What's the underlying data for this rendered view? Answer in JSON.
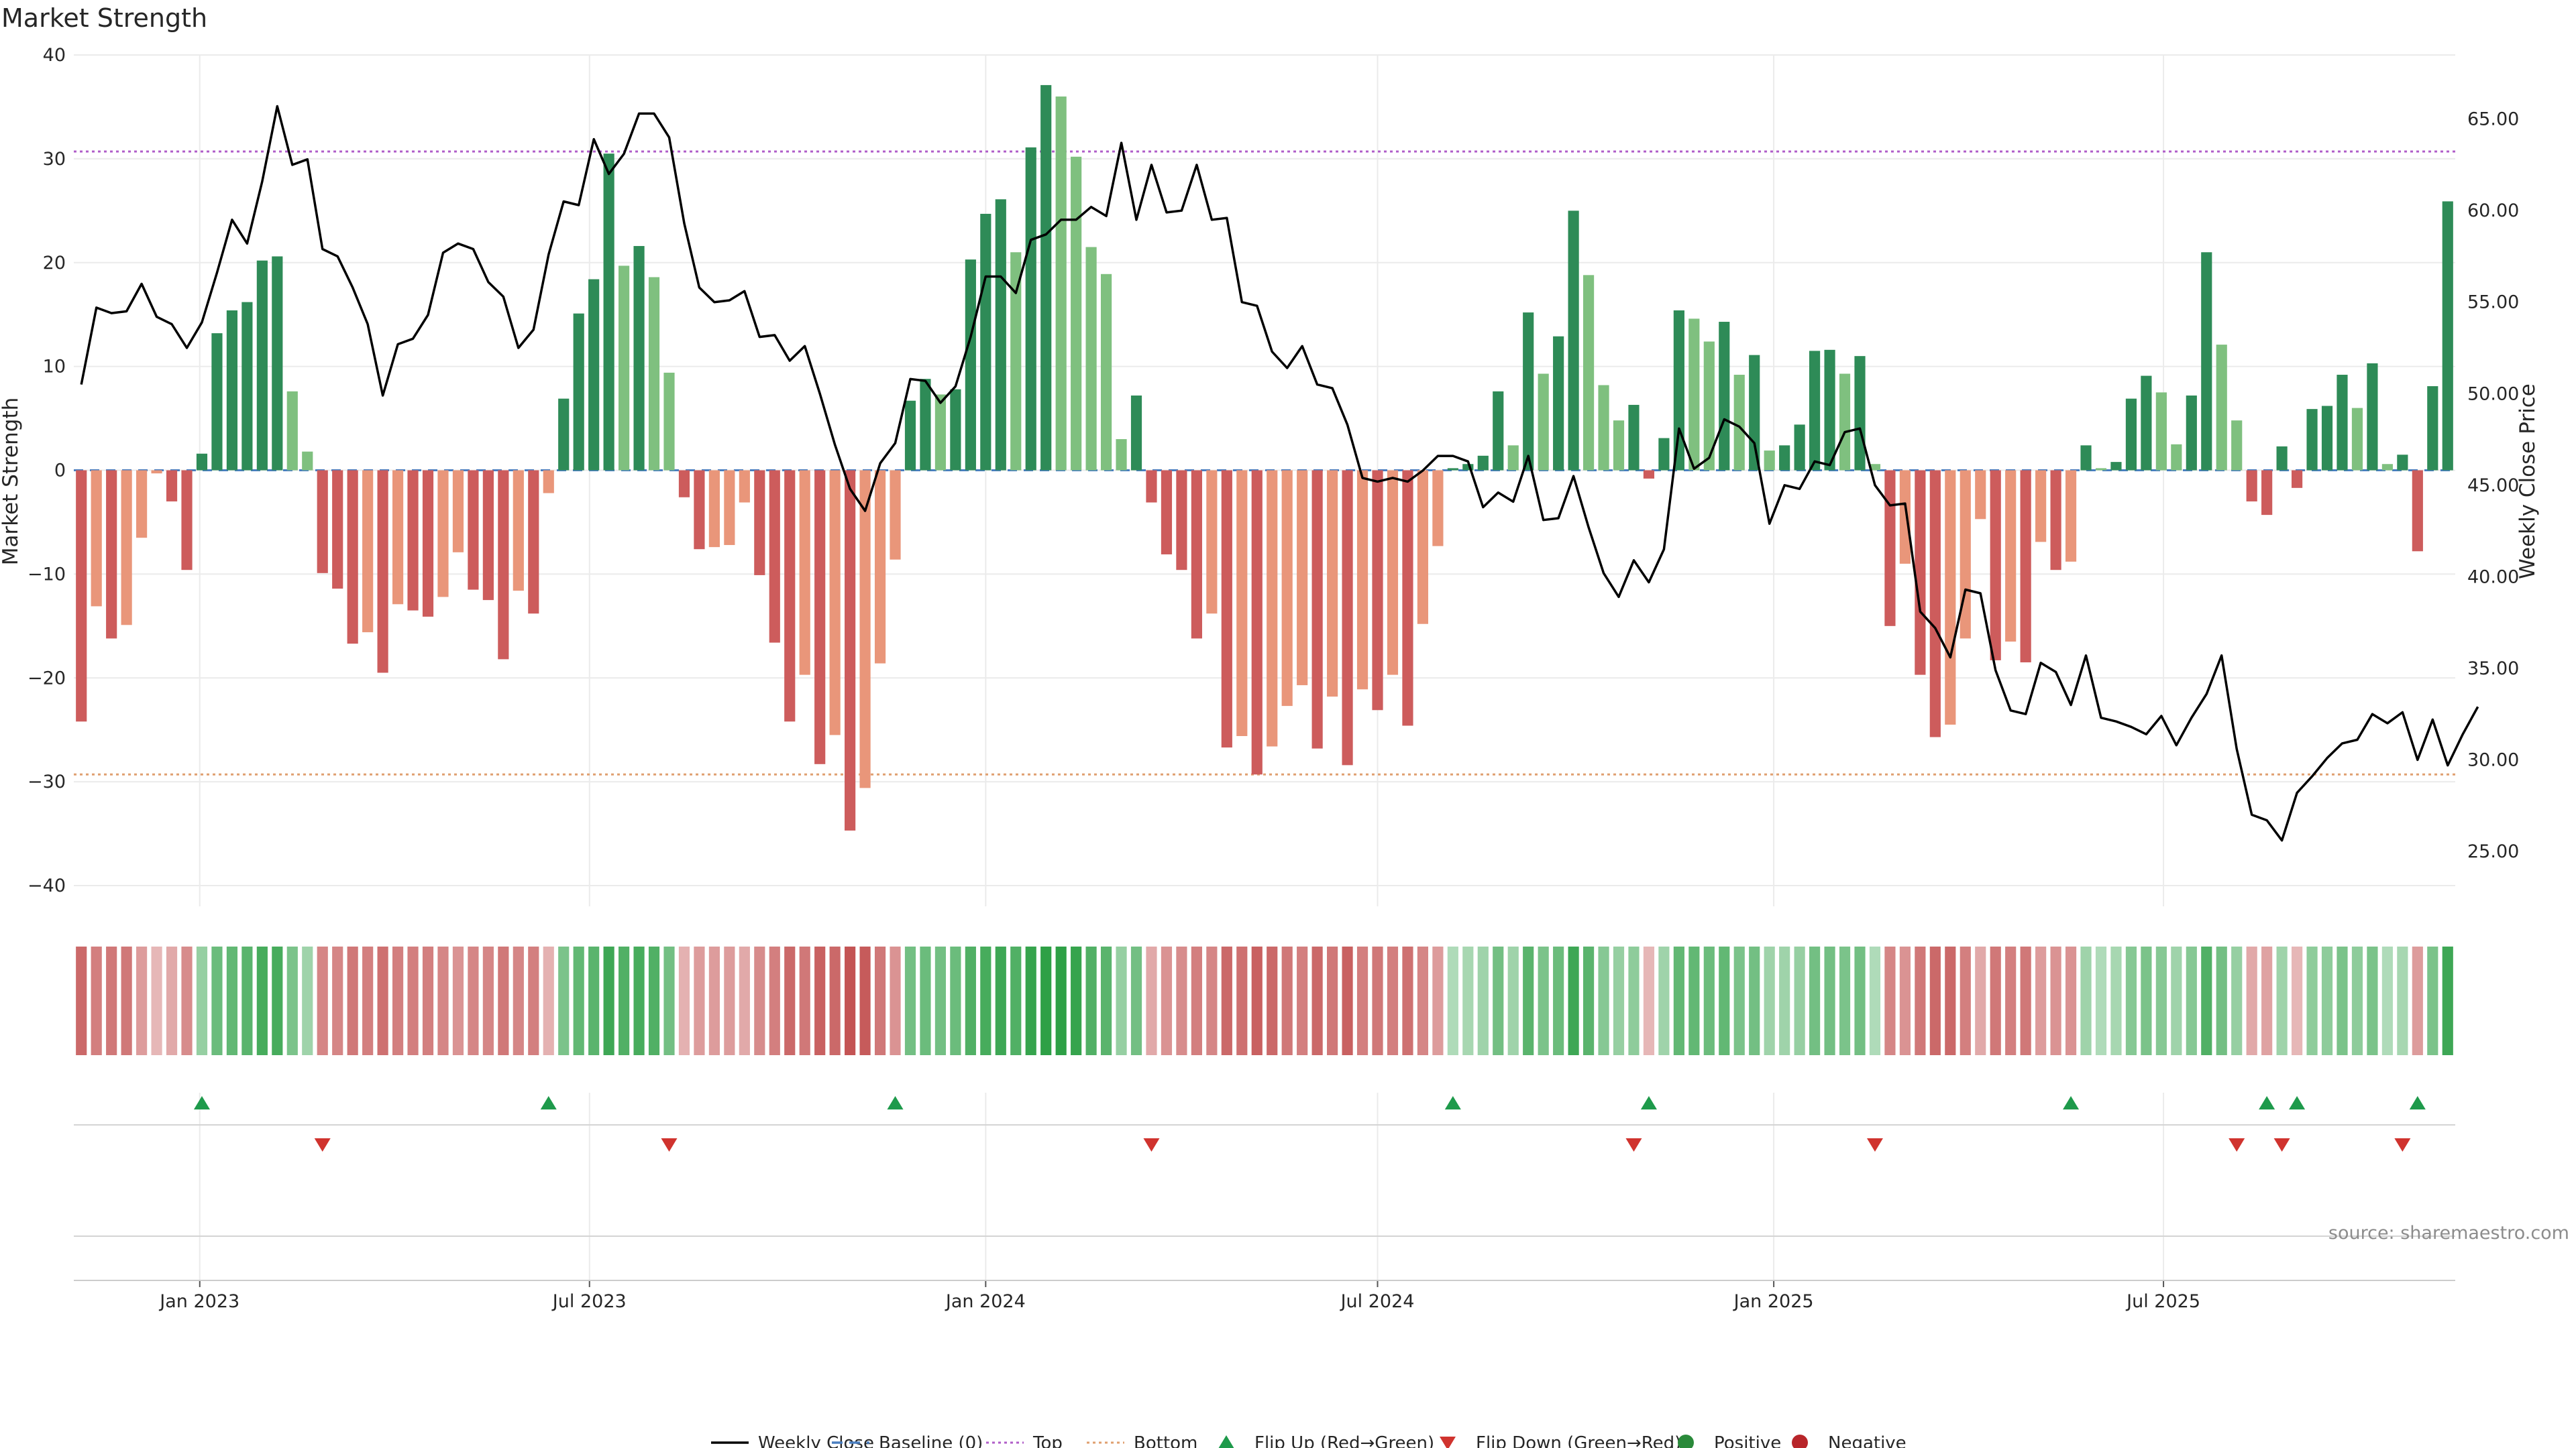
{
  "chart_data": {
    "type": "bar",
    "title": "Market Strength",
    "ylabel": "Market Strength",
    "y2label": "Weekly Close Price",
    "source": "source: sharemaestro.com",
    "ylim": [
      -42,
      40
    ],
    "y2lim": [
      22,
      68.5
    ],
    "yticks": [
      40,
      30,
      20,
      10,
      0,
      -10,
      -20,
      -30,
      -40
    ],
    "y2ticks": [
      65,
      60,
      55,
      50,
      45,
      40,
      35,
      30,
      25
    ],
    "top_line": 30.7,
    "bottom_line": -29.3,
    "start_date": "2022-11-07",
    "xticks": [
      {
        "label": "Jan 2023",
        "date": "2023-01-01"
      },
      {
        "label": "Jul 2023",
        "date": "2023-07-01"
      },
      {
        "label": "Jan 2024",
        "date": "2024-01-01"
      },
      {
        "label": "Jul 2024",
        "date": "2024-07-01"
      },
      {
        "label": "Jan 2025",
        "date": "2025-01-01"
      },
      {
        "label": "Jul 2025",
        "date": "2025-07-01"
      }
    ],
    "strength": [
      -24.2,
      -13.1,
      -16.2,
      -14.9,
      -6.5,
      -0.3,
      -3,
      -9.6,
      1.6,
      13.2,
      15.4,
      16.2,
      20.2,
      20.6,
      7.6,
      1.8,
      -9.9,
      -11.4,
      -16.7,
      -15.6,
      -19.5,
      -12.9,
      -13.5,
      -14.1,
      -12.2,
      -7.9,
      -11.5,
      -12.5,
      -18.2,
      -11.6,
      -13.8,
      -2.2,
      6.9,
      15.1,
      18.4,
      30.5,
      19.7,
      21.6,
      18.6,
      9.4,
      -2.6,
      -7.6,
      -7.4,
      -7.2,
      -3.1,
      -10.1,
      -16.6,
      -24.2,
      -19.7,
      -28.3,
      -25.5,
      -34.7,
      -30.6,
      -18.6,
      -8.6,
      6.7,
      8.8,
      7.3,
      7.8,
      20.3,
      24.7,
      26.1,
      21,
      31.1,
      37.1,
      36,
      30.2,
      21.5,
      18.9,
      3,
      7.2,
      -3.1,
      -8.1,
      -9.6,
      -16.2,
      -13.8,
      -26.7,
      -25.6,
      -29.3,
      -26.6,
      -22.7,
      -20.7,
      -26.8,
      -21.8,
      -28.4,
      -21.1,
      -23.1,
      -19.7,
      -24.6,
      -14.8,
      -7.3,
      0.2,
      0.6,
      1.4,
      7.6,
      2.4,
      15.2,
      9.3,
      12.9,
      25,
      18.8,
      8.2,
      4.8,
      6.3,
      -0.8,
      3.1,
      15.4,
      14.6,
      12.4,
      14.3,
      9.2,
      11.1,
      1.9,
      2.4,
      4.4,
      11.5,
      11.6,
      9.3,
      11,
      0.6,
      -15,
      -9,
      -19.7,
      -25.7,
      -24.5,
      -16.2,
      -4.7,
      -18.3,
      -16.5,
      -18.5,
      -6.9,
      -9.6,
      -8.8,
      2.4,
      0.2,
      0.8,
      6.9,
      9.1,
      7.5,
      2.5,
      7.2,
      21,
      12.1,
      4.8,
      -3,
      -4.3,
      2.3,
      -1.7,
      5.9,
      6.2,
      9.2,
      6,
      10.3,
      0.6,
      1.5,
      -7.8,
      8.1,
      25.9
    ],
    "price": [
      50.5,
      54.7,
      54.4,
      54.5,
      56,
      54.2,
      53.8,
      52.5,
      53.9,
      56.6,
      59.5,
      58.2,
      61.6,
      65.7,
      62.5,
      62.8,
      57.9,
      57.5,
      55.8,
      53.8,
      49.9,
      52.7,
      53,
      54.3,
      57.7,
      58.2,
      57.9,
      56.1,
      55.3,
      52.5,
      53.5,
      57.6,
      60.5,
      60.3,
      63.9,
      62,
      63.1,
      65.3,
      65.3,
      64,
      59.3,
      55.8,
      55,
      55.1,
      55.6,
      53.1,
      53.2,
      51.8,
      52.6,
      50,
      47.2,
      44.8,
      43.6,
      46.2,
      47.3,
      50.8,
      50.7,
      49.5,
      50.4,
      53.1,
      56.4,
      56.4,
      55.5,
      58.4,
      58.7,
      59.5,
      59.5,
      60.2,
      59.7,
      63.7,
      59.5,
      62.5,
      59.9,
      60,
      62.5,
      59.5,
      59.6,
      55,
      54.8,
      52.3,
      51.4,
      52.6,
      50.5,
      50.3,
      48.3,
      45.4,
      45.2,
      45.4,
      45.2,
      45.8,
      46.6,
      46.6,
      46.3,
      43.8,
      44.6,
      44.1,
      46.6,
      43.1,
      43.2,
      45.5,
      42.7,
      40.2,
      38.9,
      40.9,
      39.7,
      41.5,
      48.1,
      45.9,
      46.5,
      48.6,
      48.2,
      47.3,
      42.9,
      45,
      44.8,
      46.3,
      46.1,
      47.9,
      48.1,
      45,
      43.9,
      44,
      38.1,
      37.2,
      35.6,
      39.3,
      39.1,
      34.9,
      32.7,
      32.5,
      35.3,
      34.8,
      33,
      35.7,
      32.3,
      32.1,
      31.8,
      31.4,
      32.4,
      30.8,
      32.3,
      33.6,
      35.7,
      30.6,
      27,
      26.7,
      25.6,
      28.2,
      29.1,
      30.1,
      30.9,
      31.1,
      32.5,
      32,
      32.6,
      30,
      32.2,
      29.7,
      31.4,
      32.9
    ],
    "heat_strength": [
      -15,
      -12,
      -13,
      -13,
      -8,
      -4,
      -6,
      -10,
      6,
      11,
      12,
      13,
      15,
      15,
      9,
      5,
      -11,
      -11,
      -13,
      -12,
      -14,
      -12,
      -12,
      -12,
      -11,
      -9,
      -11,
      -11,
      -13,
      -11,
      -12,
      -5,
      9,
      12,
      13,
      16,
      14,
      15,
      14,
      10,
      -5,
      -8,
      -8,
      -8,
      -6,
      -10,
      -12,
      -15,
      -13,
      -16,
      -15,
      -18,
      -17,
      -13,
      -9,
      10,
      11,
      10,
      11,
      14,
      15,
      16,
      14,
      17,
      20,
      19,
      17,
      14,
      13,
      6,
      10,
      -6,
      -9,
      -10,
      -12,
      -11,
      -15,
      -14,
      -16,
      -15,
      -13,
      -12,
      -15,
      -13,
      -16,
      -12,
      -13,
      -12,
      -14,
      -11,
      -8,
      3,
      4,
      5,
      10,
      5,
      13,
      9,
      11,
      16,
      13,
      8,
      6,
      7,
      -4,
      5,
      12,
      12,
      11,
      12,
      9,
      10,
      5,
      5,
      6,
      10,
      10,
      9,
      10,
      3,
      -11,
      -9,
      -13,
      -15,
      -15,
      -12,
      -6,
      -13,
      -12,
      -13,
      -8,
      -9,
      -9,
      5,
      3,
      4,
      8,
      9,
      8,
      5,
      8,
      14,
      10,
      6,
      -6,
      -7,
      5,
      -4,
      7,
      7,
      9,
      7,
      9,
      3,
      4,
      -8,
      9,
      16
    ],
    "flip_up_idx": [
      8,
      31,
      54,
      91,
      104,
      132,
      145,
      147,
      155
    ],
    "flip_down_idx": [
      16,
      39,
      71,
      103,
      119,
      143,
      146,
      154
    ],
    "legend": [
      {
        "name": "Weekly Close",
        "kind": "line",
        "color": "#000000"
      },
      {
        "name": "Baseline (0)",
        "kind": "dash",
        "color": "#4a7fc1"
      },
      {
        "name": "Top",
        "kind": "dot",
        "color": "#b05ec9"
      },
      {
        "name": "Bottom",
        "kind": "dot",
        "color": "#e0a070"
      },
      {
        "name": "Flip Up (Red→Green)",
        "kind": "tri-up",
        "color": "#1e9a4b"
      },
      {
        "name": "Flip Down (Green→Red)",
        "kind": "tri-down",
        "color": "#d0332e"
      },
      {
        "name": "Positive",
        "kind": "circle",
        "color": "#2a8a3a"
      },
      {
        "name": "Negative",
        "kind": "circle",
        "color": "#b8252a"
      }
    ],
    "colors": {
      "pos_dark": "#2e8b57",
      "pos_light": "#7fc07f",
      "neg_dark": "#cd5c5c",
      "neg_light": "#e9967a",
      "top": "#b05ec9",
      "bottom": "#e0a070",
      "baseline": "#4a7fc1",
      "up": "#1e9a4b",
      "down": "#d0332e",
      "grid": "#ebebeb"
    }
  }
}
